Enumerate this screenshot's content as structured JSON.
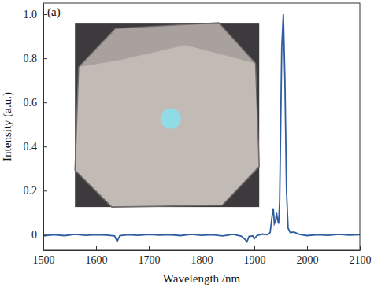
{
  "chart_data": {
    "type": "line",
    "annotations": [
      "(a)"
    ],
    "x_label": "Wavelength /nm",
    "y_label": "Intensity (a.u.)",
    "x": [
      1500,
      1520,
      1540,
      1560,
      1580,
      1600,
      1620,
      1635,
      1640,
      1645,
      1660,
      1680,
      1700,
      1720,
      1740,
      1760,
      1780,
      1800,
      1820,
      1840,
      1860,
      1875,
      1882,
      1886,
      1890,
      1897,
      1900,
      1905,
      1915,
      1925,
      1930,
      1934,
      1936,
      1938,
      1940,
      1942,
      1944,
      1946,
      1948,
      1950,
      1952,
      1955,
      1958,
      1961,
      1964,
      1968,
      1975,
      1985,
      2000,
      2020,
      2040,
      2060,
      2080,
      2100
    ],
    "series": [
      {
        "color": "#2f5d9e",
        "values": [
          -0.005,
          0,
          -0.004,
          0.002,
          -0.003,
          0,
          -0.002,
          -0.005,
          -0.03,
          -0.004,
          0,
          -0.003,
          0.001,
          -0.002,
          0,
          -0.004,
          0.002,
          -0.003,
          0,
          -0.005,
          0.002,
          -0.006,
          -0.02,
          -0.032,
          -0.008,
          -0.005,
          -0.018,
          -0.004,
          0.003,
          0,
          0.01,
          0.09,
          0.12,
          0.05,
          0.06,
          0.1,
          0.07,
          0.05,
          0.15,
          0.5,
          0.85,
          1.0,
          0.7,
          0.2,
          0.03,
          0.01,
          0.012,
          0.002,
          -0.004,
          0,
          -0.003,
          0.002,
          -0.002,
          0
        ]
      }
    ],
    "xlim": [
      1500,
      2100
    ],
    "ylim": [
      -0.07,
      1.05
    ],
    "xticks": [
      1500,
      1600,
      1700,
      1800,
      1900,
      2000,
      2100
    ],
    "yticks": [
      0,
      0.2,
      0.4,
      0.6,
      0.8,
      {
        "value": 1,
        "label": "1.0"
      }
    ]
  }
}
